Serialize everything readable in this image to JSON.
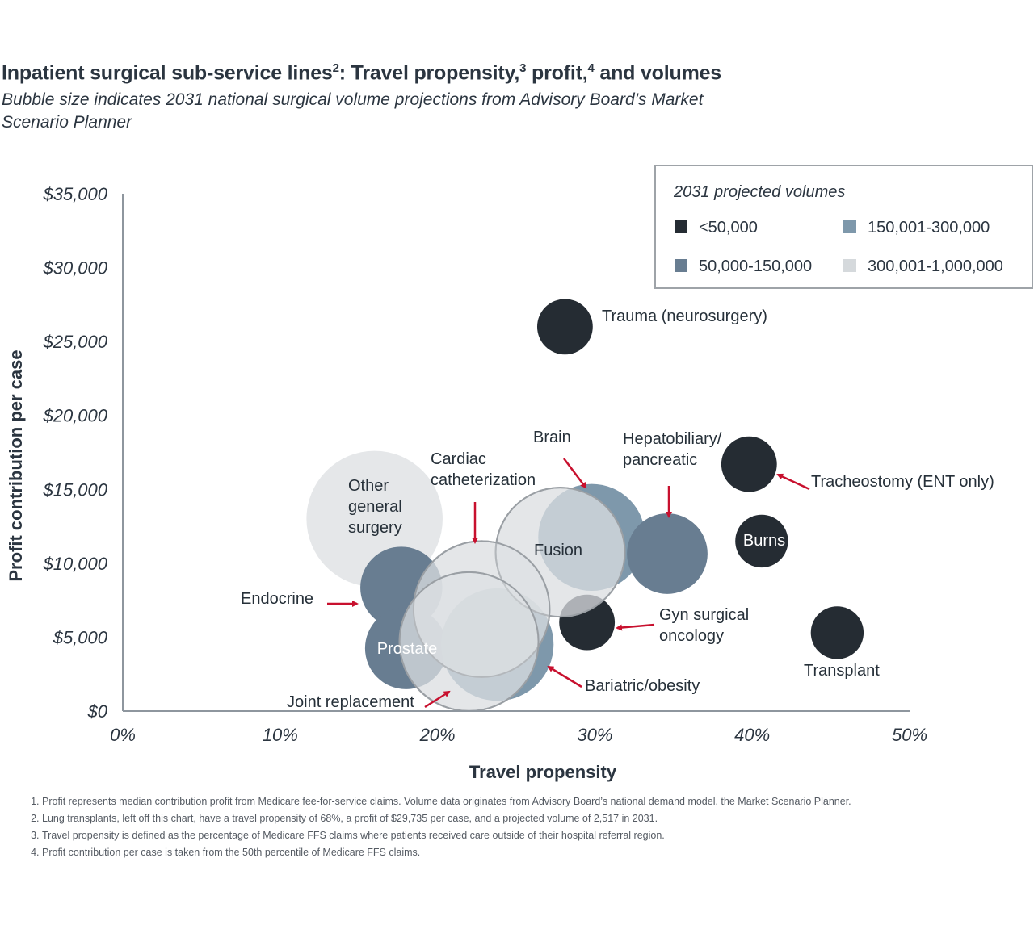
{
  "title": {
    "main": "Inpatient surgical sub-service lines",
    "sup1": "2",
    "part2": ": Travel propensity,",
    "sup2": "3",
    "part3": " profit,",
    "sup3": "4",
    "part4": " and volumes"
  },
  "subtitle": "Bubble size indicates 2031 national surgical volume projections from Advisory Board’s Market Scenario Planner",
  "colors": {
    "lt50k": "#252c33",
    "50k_150k": "#687d91",
    "150k_300k": "#7e98ab",
    "300k_1m": "#d5d9dc",
    "arrow": "#c8102e",
    "axis": "#8e969e"
  },
  "chart_data": {
    "type": "scatter",
    "subtype": "bubble",
    "xlabel": "Travel propensity",
    "ylabel": "Profit contribution per case",
    "xlim": [
      0,
      50
    ],
    "ylim": [
      0,
      35000
    ],
    "x_ticks": [
      "0%",
      "10%",
      "20%",
      "30%",
      "40%",
      "50%"
    ],
    "x_tick_values": [
      0,
      10,
      20,
      30,
      40,
      50
    ],
    "y_ticks": [
      "$0",
      "$5,000",
      "$10,000",
      "$15,000",
      "$20,000",
      "$25,000",
      "$30,000",
      "$35,000"
    ],
    "y_tick_values": [
      0,
      5000,
      10000,
      15000,
      20000,
      25000,
      30000,
      35000
    ],
    "grid": false,
    "legend": {
      "title": "2031 projected volumes",
      "placement": "top-right",
      "items": [
        {
          "key": "lt50k",
          "label": "<50,000"
        },
        {
          "key": "150k_300k",
          "label": "150,001-300,000"
        },
        {
          "key": "50k_150k",
          "label": "50,000-150,000"
        },
        {
          "key": "300k_1m",
          "label": "300,001-1,000,000"
        }
      ]
    },
    "points": [
      {
        "name": "Other general surgery",
        "label": "Other\ngeneral\nsurgery",
        "x": 16.0,
        "y": 13000,
        "volume_class": "300k_1m",
        "size_rel": 0.98
      },
      {
        "name": "Joint replacement",
        "label": "Joint replacement",
        "x": 22.0,
        "y": 4700,
        "volume_class": "300k_1m",
        "size_rel": 1.0,
        "outlined": true
      },
      {
        "name": "Cardiac catheterization",
        "label": "Cardiac\ncatheterization",
        "x": 22.8,
        "y": 6900,
        "volume_class": "300k_1m",
        "size_rel": 0.98,
        "outlined": true
      },
      {
        "name": "Fusion",
        "label": "Fusion",
        "x": 27.8,
        "y": 10750,
        "volume_class": "300k_1m",
        "size_rel": 0.93,
        "outlined": true
      },
      {
        "name": "Brain",
        "label": "Brain",
        "x": 29.8,
        "y": 11750,
        "volume_class": "150k_300k",
        "size_rel": 0.77
      },
      {
        "name": "Bariatric/obesity",
        "label": "Bariatric/obesity",
        "x": 23.8,
        "y": 4500,
        "volume_class": "150k_300k",
        "size_rel": 0.81
      },
      {
        "name": "Hepatobiliary/pancreatic",
        "label": "Hepatobiliary/\npancreatic",
        "x": 34.6,
        "y": 10650,
        "volume_class": "50k_150k",
        "size_rel": 0.58
      },
      {
        "name": "Endocrine",
        "label": "Endocrine",
        "x": 17.7,
        "y": 8350,
        "volume_class": "50k_150k",
        "size_rel": 0.59
      },
      {
        "name": "Prostate",
        "label": "Prostate",
        "x": 18.0,
        "y": 4250,
        "volume_class": "50k_150k",
        "size_rel": 0.59
      },
      {
        "name": "Trauma (neurosurgery)",
        "label": "Trauma (neurosurgery)",
        "x": 28.1,
        "y": 26000,
        "volume_class": "lt50k",
        "size_rel": 0.4
      },
      {
        "name": "Tracheostomy (ENT only)",
        "label": "Tracheostomy (ENT only)",
        "x": 39.8,
        "y": 16700,
        "volume_class": "lt50k",
        "size_rel": 0.4
      },
      {
        "name": "Burns",
        "label": "Burns",
        "x": 40.6,
        "y": 11500,
        "volume_class": "lt50k",
        "size_rel": 0.38
      },
      {
        "name": "Gyn surgical oncology",
        "label": "Gyn surgical\noncology",
        "x": 29.5,
        "y": 6000,
        "volume_class": "lt50k",
        "size_rel": 0.4
      },
      {
        "name": "Transplant",
        "label": "Transplant",
        "x": 45.4,
        "y": 5300,
        "volume_class": "lt50k",
        "size_rel": 0.38
      }
    ]
  },
  "footnotes": [
    "Profit represents median contribution profit from Medicare fee-for-service claims. Volume data originates from Advisory Board’s national demand model, the Market Scenario Planner.",
    "Lung transplants, left off this chart, have a travel propensity of 68%, a profit of $29,735 per case, and a projected volume of 2,517 in 2031.",
    "Travel propensity is defined as the percentage of Medicare FFS claims where patients received care outside of their hospital referral region.",
    "Profit contribution per case is taken from the 50th percentile of Medicare FFS claims."
  ]
}
